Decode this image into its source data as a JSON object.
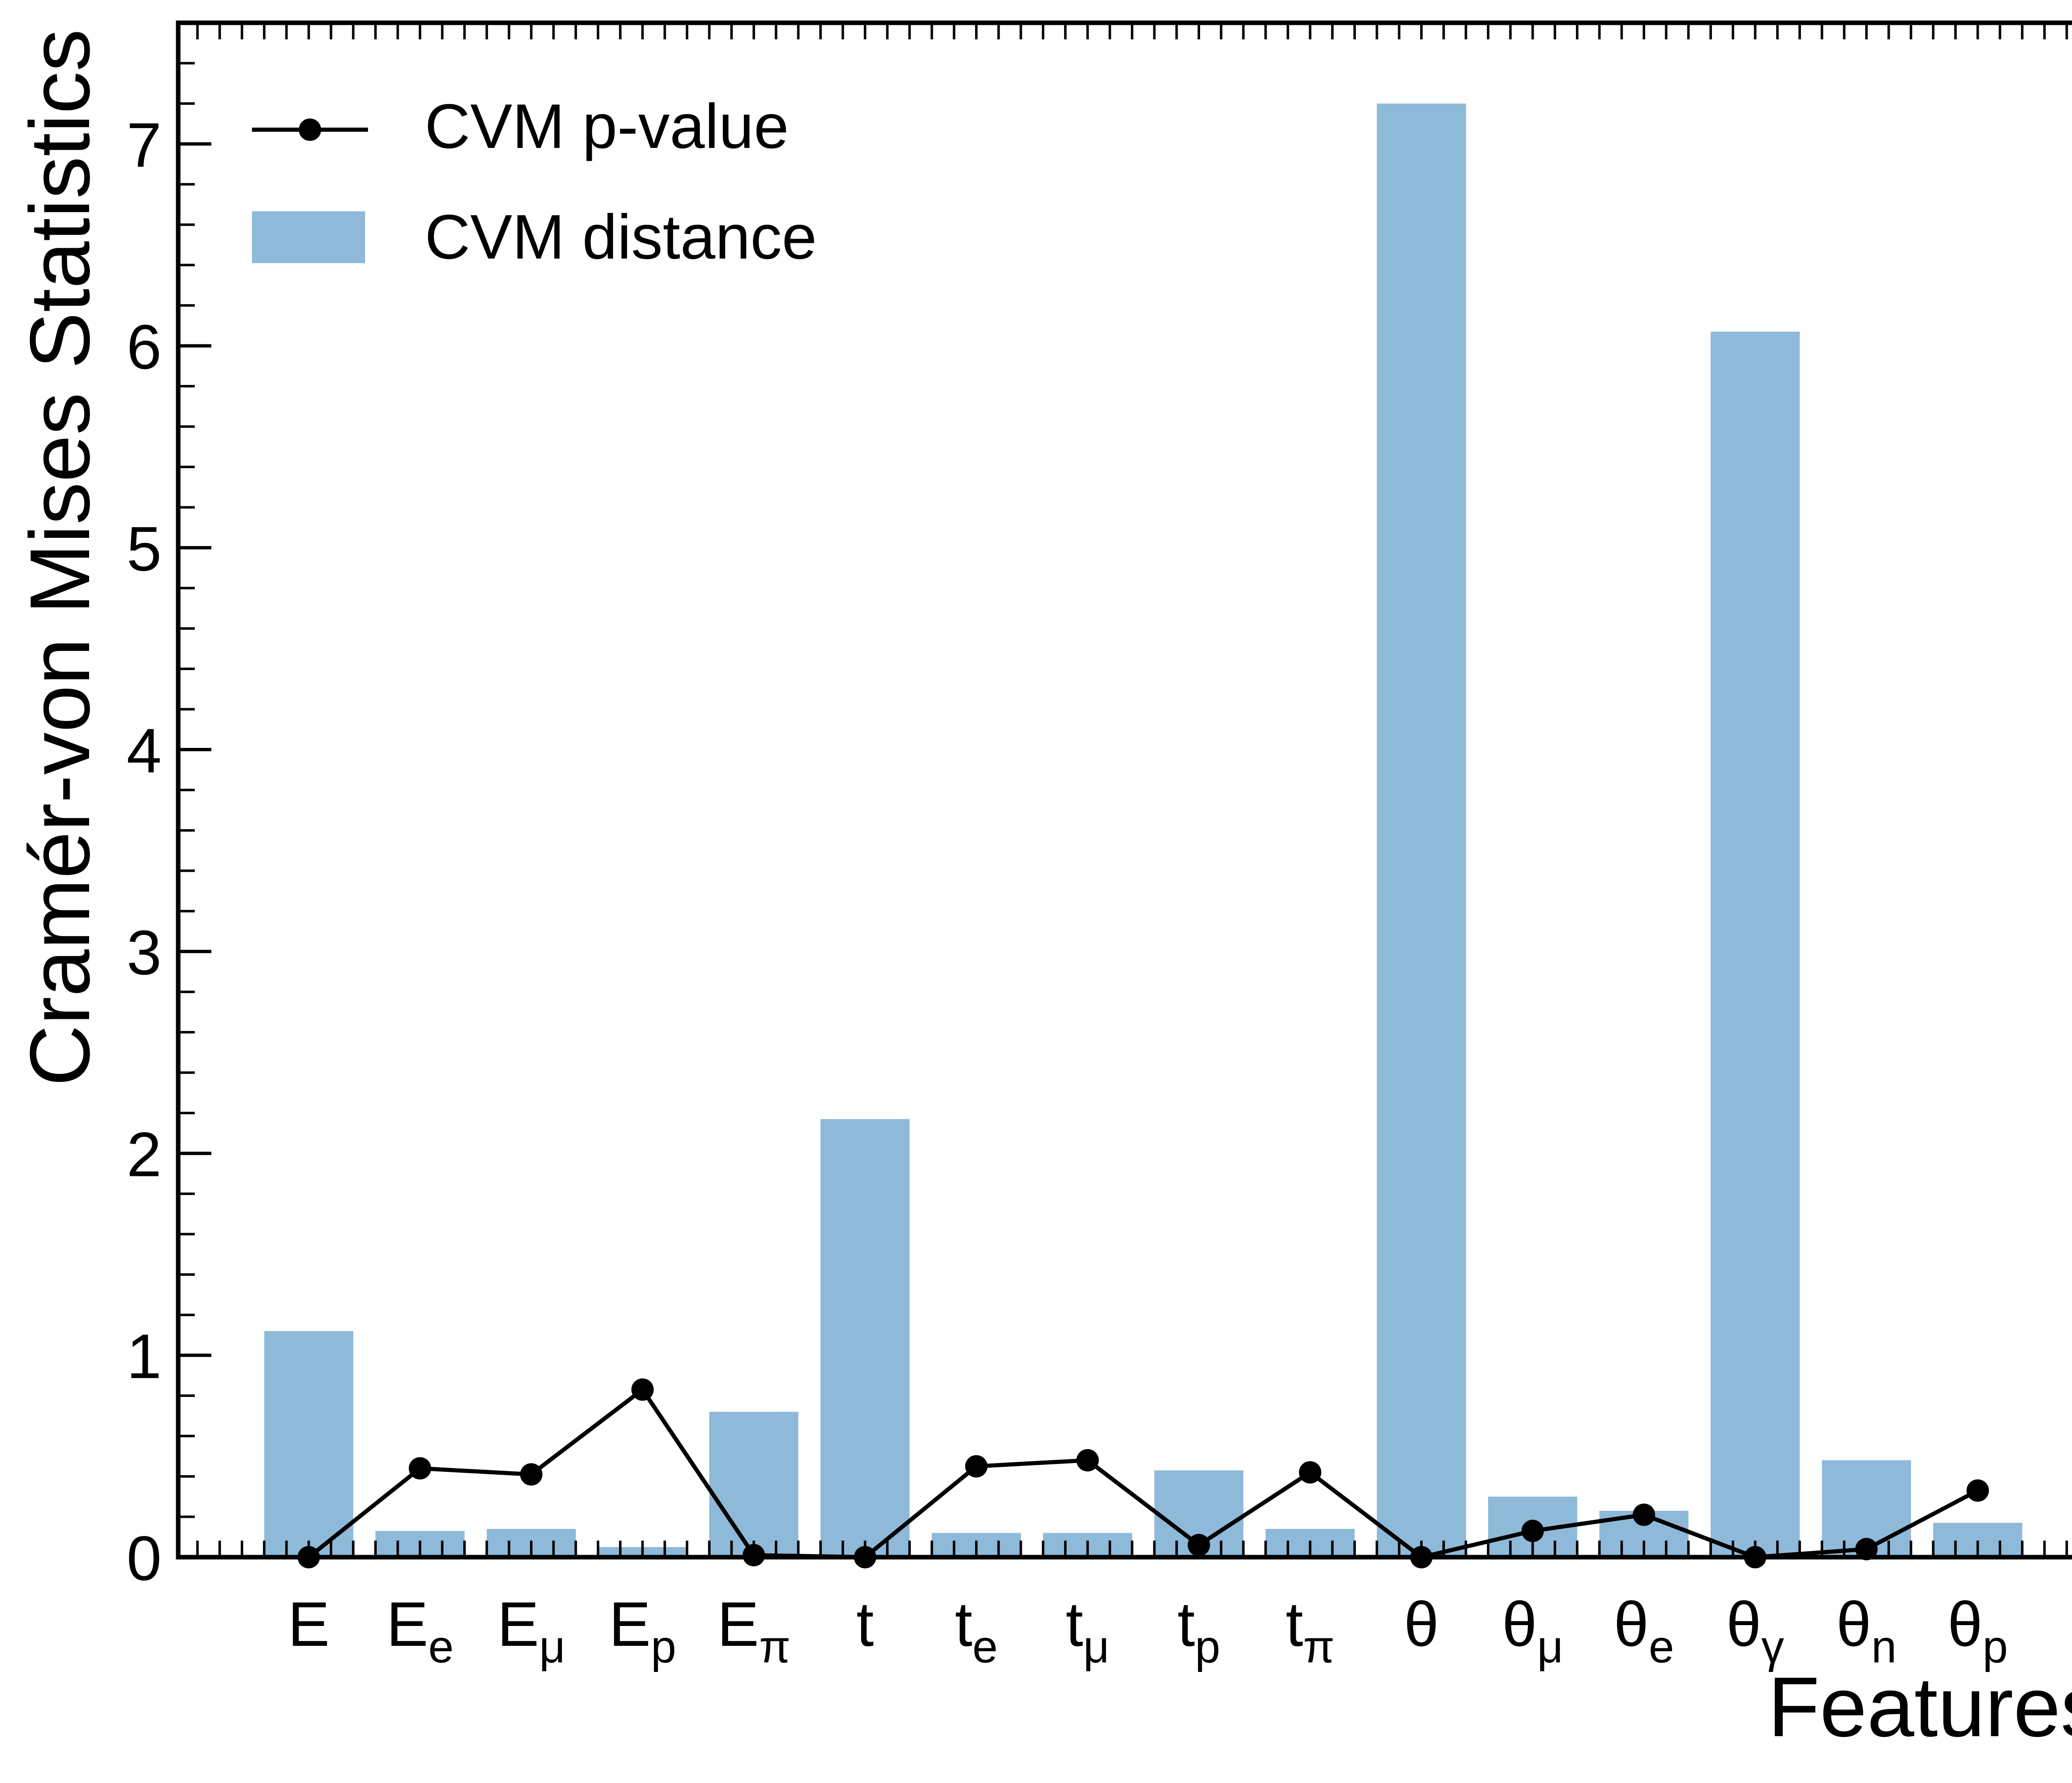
{
  "chart_data": {
    "type": "bar",
    "title": "",
    "xlabel": "Features",
    "ylabel": "Cramér-von Mises Statistics",
    "ylim": [
      0,
      7.6
    ],
    "yticks": [
      "0",
      "1",
      "2",
      "3",
      "4",
      "5",
      "6",
      "7"
    ],
    "grid": false,
    "legend_position": "top-left",
    "categories": [
      {
        "base": "E",
        "sub": ""
      },
      {
        "base": "E",
        "sub": "e"
      },
      {
        "base": "E",
        "sub": "μ"
      },
      {
        "base": "E",
        "sub": "p"
      },
      {
        "base": "E",
        "sub": "π"
      },
      {
        "base": "t",
        "sub": ""
      },
      {
        "base": "t",
        "sub": "e"
      },
      {
        "base": "t",
        "sub": "μ"
      },
      {
        "base": "t",
        "sub": "p"
      },
      {
        "base": "t",
        "sub": "π"
      },
      {
        "base": "θ",
        "sub": ""
      },
      {
        "base": "θ",
        "sub": "μ"
      },
      {
        "base": "θ",
        "sub": "e"
      },
      {
        "base": "θ",
        "sub": "γ"
      },
      {
        "base": "θ",
        "sub": "n"
      },
      {
        "base": "θ",
        "sub": "p"
      }
    ],
    "series": [
      {
        "name": "CVM distance",
        "kind": "bar",
        "color": "#8fb9d9",
        "values": [
          1.12,
          0.13,
          0.14,
          0.05,
          0.72,
          2.17,
          0.12,
          0.12,
          0.43,
          0.14,
          7.2,
          0.3,
          0.23,
          6.07,
          0.48,
          0.17
        ]
      },
      {
        "name": "CVM p-value",
        "kind": "line",
        "color": "#000000",
        "values": [
          0.0,
          0.44,
          0.41,
          0.83,
          0.01,
          0.0,
          0.45,
          0.48,
          0.06,
          0.42,
          0.0,
          0.13,
          0.21,
          0.0,
          0.04,
          0.33
        ]
      }
    ]
  }
}
